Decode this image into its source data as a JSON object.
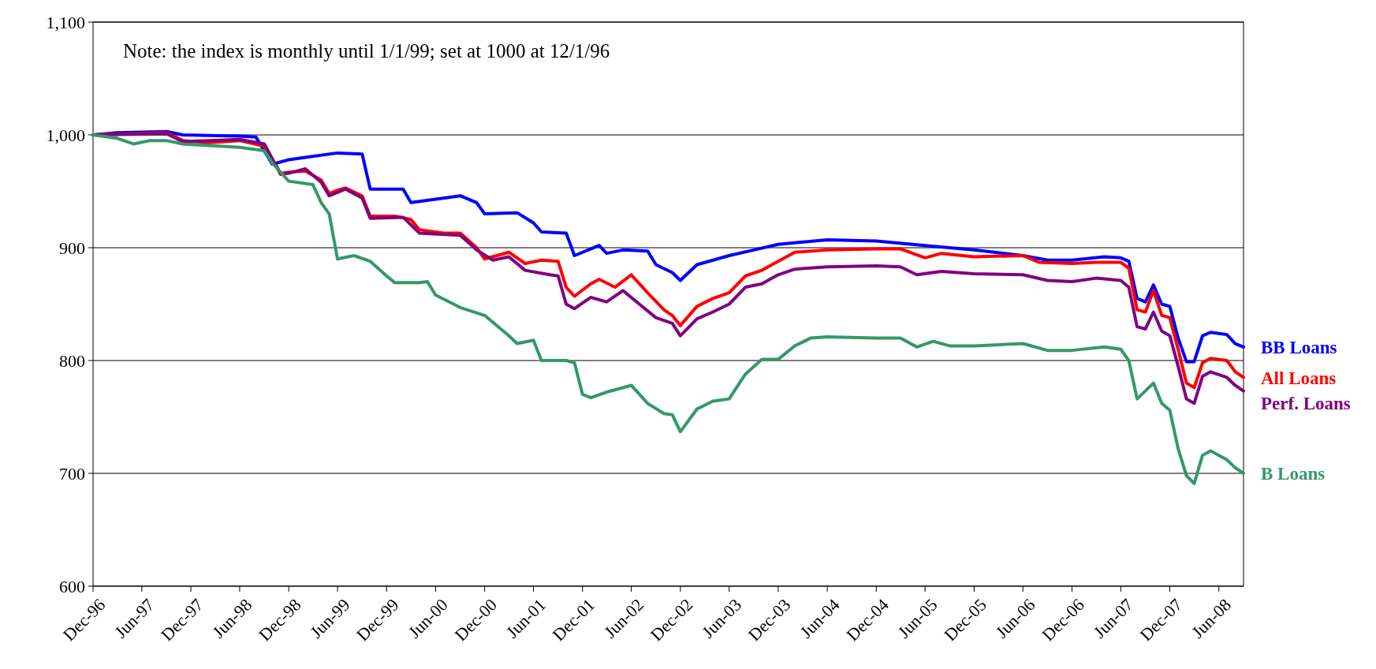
{
  "chart_data": {
    "type": "line",
    "annotations": [
      "Note: the index is monthly until 1/1/99; set at 1000 at 12/1/96"
    ],
    "ylim": [
      600,
      1100
    ],
    "yticks": [
      600,
      700,
      800,
      900,
      {
        "value": 1000,
        "label": "1,000"
      },
      {
        "value": 1100,
        "label": "1,100"
      }
    ],
    "xlim": [
      "1996-12",
      "2008-09"
    ],
    "xticks": [
      {
        "value": "1996-12",
        "label": "Dec-96"
      },
      {
        "value": "1997-06",
        "label": "Jun-97"
      },
      {
        "value": "1997-12",
        "label": "Dec-97"
      },
      {
        "value": "1998-06",
        "label": "Jun-98"
      },
      {
        "value": "1998-12",
        "label": "Dec-98"
      },
      {
        "value": "1999-06",
        "label": "Jun-99"
      },
      {
        "value": "1999-12",
        "label": "Dec-99"
      },
      {
        "value": "2000-06",
        "label": "Jun-00"
      },
      {
        "value": "2000-12",
        "label": "Dec-00"
      },
      {
        "value": "2001-06",
        "label": "Jun-01"
      },
      {
        "value": "2001-12",
        "label": "Dec-01"
      },
      {
        "value": "2002-06",
        "label": "Jun-02"
      },
      {
        "value": "2002-12",
        "label": "Dec-02"
      },
      {
        "value": "2003-06",
        "label": "Jun-03"
      },
      {
        "value": "2003-12",
        "label": "Dec-03"
      },
      {
        "value": "2004-06",
        "label": "Jun-04"
      },
      {
        "value": "2004-12",
        "label": "Dec-04"
      },
      {
        "value": "2005-06",
        "label": "Jun-05"
      },
      {
        "value": "2005-12",
        "label": "Dec-05"
      },
      {
        "value": "2006-06",
        "label": "Jun-06"
      },
      {
        "value": "2006-12",
        "label": "Dec-06"
      },
      {
        "value": "2007-06",
        "label": "Jun-07"
      },
      {
        "value": "2007-12",
        "label": "Dec-07"
      },
      {
        "value": "2008-06",
        "label": "Jun-08"
      }
    ],
    "grid": "y",
    "marker": "none",
    "line_style": "solid",
    "series": [
      {
        "name": "BB Loans",
        "color": "#0000ff",
        "x": [
          "1996-12",
          "1997-03",
          "1997-09",
          "1997-11",
          "1998-06",
          "1998-08",
          "1998-10",
          "1998-12",
          "1999-02",
          "1999-06",
          "1999-09",
          "1999-10",
          "2000-02",
          "2000-03",
          "2000-06",
          "2000-09",
          "2000-11",
          "2000-12",
          "2001-04",
          "2001-06",
          "2001-07",
          "2001-10",
          "2001-11",
          "2002-02",
          "2002-03",
          "2002-05",
          "2002-08",
          "2002-09",
          "2002-11",
          "2002-12",
          "2003-02",
          "2003-06",
          "2003-09",
          "2003-12",
          "2004-06",
          "2004-12",
          "2005-06",
          "2005-12",
          "2006-06",
          "2006-09",
          "2006-12",
          "2007-04",
          "2007-06",
          "2007-07",
          "2007-08",
          "2007-09",
          "2007-10",
          "2007-11",
          "2007-12",
          "2008-01",
          "2008-02",
          "2008-03",
          "2008-04",
          "2008-05",
          "2008-07",
          "2008-08",
          "2008-09"
        ],
        "values": [
          1000,
          1002,
          1003,
          1000,
          999,
          998,
          974,
          978,
          980,
          984,
          983,
          952,
          952,
          940,
          943,
          946,
          940,
          930,
          931,
          922,
          914,
          913,
          893,
          902,
          895,
          898,
          897,
          885,
          878,
          871,
          885,
          893,
          898,
          903,
          907,
          906,
          902,
          898,
          893,
          889,
          889,
          892,
          891,
          888,
          855,
          852,
          867,
          850,
          848,
          820,
          799,
          799,
          822,
          825,
          823,
          815,
          812
        ]
      },
      {
        "name": "All Loans",
        "color": "#ff0000",
        "x": [
          "1996-12",
          "1997-09",
          "1997-11",
          "1998-02",
          "1998-06",
          "1998-09",
          "1998-11",
          "1998-12",
          "1999-02",
          "1999-04",
          "1999-05",
          "1999-06",
          "1999-07",
          "1999-09",
          "1999-10",
          "2000-01",
          "2000-03",
          "2000-04",
          "2000-07",
          "2000-09",
          "2000-11",
          "2000-12",
          "2001-03",
          "2001-05",
          "2001-07",
          "2001-09",
          "2001-10",
          "2001-11",
          "2002-01",
          "2002-02",
          "2002-04",
          "2002-06",
          "2002-08",
          "2002-10",
          "2002-11",
          "2002-12",
          "2003-02",
          "2003-04",
          "2003-06",
          "2003-08",
          "2003-10",
          "2003-12",
          "2004-02",
          "2004-06",
          "2004-12",
          "2005-03",
          "2005-06",
          "2005-08",
          "2005-12",
          "2006-06",
          "2006-08",
          "2006-12",
          "2007-03",
          "2007-06",
          "2007-07",
          "2007-08",
          "2007-09",
          "2007-10",
          "2007-11",
          "2007-12",
          "2008-01",
          "2008-02",
          "2008-03",
          "2008-04",
          "2008-05",
          "2008-07",
          "2008-08",
          "2008-09"
        ],
        "values": [
          1000,
          1002,
          995,
          993,
          995,
          990,
          966,
          967,
          968,
          960,
          948,
          951,
          953,
          946,
          928,
          928,
          925,
          916,
          913,
          913,
          900,
          890,
          896,
          886,
          889,
          888,
          865,
          857,
          868,
          872,
          865,
          876,
          860,
          845,
          840,
          831,
          848,
          855,
          860,
          875,
          880,
          888,
          896,
          898,
          899,
          899,
          891,
          895,
          892,
          893,
          887,
          886,
          887,
          887,
          882,
          845,
          843,
          862,
          840,
          838,
          810,
          780,
          776,
          798,
          802,
          800,
          790,
          785
        ]
      },
      {
        "name": "Perf. Loans",
        "color": "#800080",
        "x": [
          "1996-12",
          "1997-09",
          "1997-11",
          "1998-06",
          "1998-09",
          "1998-11",
          "1998-12",
          "1999-02",
          "1999-04",
          "1999-05",
          "1999-07",
          "1999-09",
          "1999-10",
          "2000-02",
          "2000-04",
          "2000-09",
          "2000-11",
          "2001-01",
          "2001-03",
          "2001-05",
          "2001-08",
          "2001-09",
          "2001-10",
          "2001-11",
          "2002-01",
          "2002-03",
          "2002-05",
          "2002-07",
          "2002-09",
          "2002-11",
          "2002-12",
          "2003-02",
          "2003-04",
          "2003-06",
          "2003-08",
          "2003-10",
          "2003-12",
          "2004-02",
          "2004-06",
          "2004-12",
          "2005-03",
          "2005-05",
          "2005-08",
          "2005-12",
          "2006-06",
          "2006-09",
          "2006-12",
          "2007-03",
          "2007-06",
          "2007-07",
          "2007-08",
          "2007-09",
          "2007-10",
          "2007-11",
          "2007-12",
          "2008-01",
          "2008-02",
          "2008-03",
          "2008-04",
          "2008-05",
          "2008-07",
          "2008-08",
          "2008-09"
        ],
        "values": [
          1000,
          1001,
          994,
          996,
          992,
          965,
          966,
          970,
          958,
          946,
          952,
          944,
          926,
          927,
          913,
          911,
          898,
          889,
          892,
          880,
          876,
          875,
          850,
          846,
          856,
          852,
          862,
          850,
          838,
          833,
          822,
          837,
          843,
          850,
          865,
          868,
          876,
          881,
          883,
          884,
          883,
          876,
          879,
          877,
          876,
          871,
          870,
          873,
          871,
          865,
          830,
          828,
          843,
          826,
          822,
          795,
          766,
          762,
          786,
          790,
          785,
          778,
          773
        ]
      },
      {
        "name": "B Loans",
        "color": "#339966",
        "x": [
          "1996-12",
          "1997-03",
          "1997-05",
          "1997-07",
          "1997-09",
          "1997-11",
          "1998-06",
          "1998-09",
          "1998-10",
          "1998-12",
          "1999-03",
          "1999-04",
          "1999-05",
          "1999-06",
          "1999-08",
          "1999-10",
          "1999-12",
          "2000-01",
          "2000-04",
          "2000-05",
          "2000-06",
          "2000-09",
          "2000-12",
          "2001-03",
          "2001-04",
          "2001-06",
          "2001-07",
          "2001-10",
          "2001-11",
          "2001-12",
          "2002-01",
          "2002-03",
          "2002-06",
          "2002-08",
          "2002-10",
          "2002-11",
          "2002-12",
          "2003-02",
          "2003-04",
          "2003-06",
          "2003-08",
          "2003-10",
          "2003-12",
          "2004-02",
          "2004-04",
          "2004-06",
          "2004-12",
          "2005-03",
          "2005-05",
          "2005-07",
          "2005-09",
          "2005-12",
          "2006-06",
          "2006-09",
          "2006-12",
          "2007-04",
          "2007-06",
          "2007-07",
          "2007-08",
          "2007-10",
          "2007-11",
          "2007-12",
          "2008-01",
          "2008-02",
          "2008-03",
          "2008-04",
          "2008-05",
          "2008-07",
          "2008-08",
          "2008-09"
        ],
        "values": [
          1000,
          997,
          992,
          995,
          995,
          992,
          989,
          986,
          975,
          959,
          956,
          940,
          930,
          890,
          893,
          888,
          875,
          869,
          869,
          870,
          858,
          847,
          840,
          822,
          815,
          818,
          800,
          800,
          798,
          770,
          767,
          772,
          778,
          762,
          753,
          752,
          737,
          757,
          764,
          766,
          788,
          801,
          801,
          813,
          820,
          821,
          820,
          820,
          812,
          817,
          813,
          813,
          815,
          809,
          809,
          812,
          810,
          800,
          766,
          780,
          762,
          756,
          722,
          698,
          691,
          716,
          720,
          712,
          705,
          700
        ]
      }
    ]
  }
}
